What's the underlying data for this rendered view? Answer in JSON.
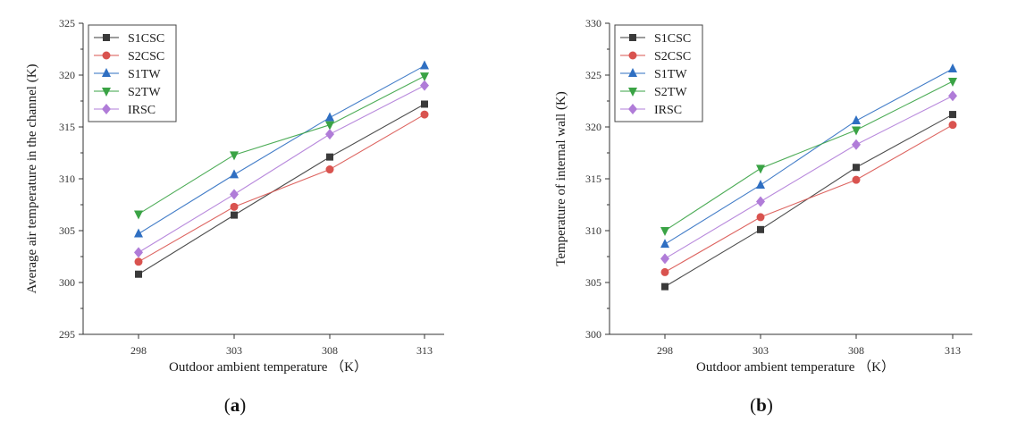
{
  "chart_data": [
    {
      "type": "line",
      "panel": "a",
      "caption_letter": "a",
      "xlabel": "Outdoor ambient temperature （K）",
      "ylabel": "Average air temperature in the channel (K)",
      "categories": [
        "298",
        "303",
        "308",
        "313"
      ],
      "yticks": [
        "295",
        "300",
        "305",
        "310",
        "315",
        "320",
        "325"
      ],
      "ylim": [
        295,
        325
      ],
      "legend_position": "top-left",
      "series": [
        {
          "name": "S1CSC",
          "marker": "square",
          "color": "#3a3a3a",
          "values": [
            300.8,
            306.5,
            312.1,
            317.2
          ]
        },
        {
          "name": "S2CSC",
          "marker": "circle",
          "color": "#d9534f",
          "values": [
            302.0,
            307.3,
            310.9,
            316.2
          ]
        },
        {
          "name": "S1TW",
          "marker": "triangle-up",
          "color": "#2f6fc2",
          "values": [
            304.7,
            310.4,
            315.9,
            320.9
          ]
        },
        {
          "name": "S2TW",
          "marker": "triangle-down",
          "color": "#3aa345",
          "values": [
            306.6,
            312.3,
            315.2,
            319.9
          ]
        },
        {
          "name": "IRSC",
          "marker": "diamond",
          "color": "#b07cd8",
          "values": [
            302.9,
            308.5,
            314.3,
            319.0
          ]
        }
      ]
    },
    {
      "type": "line",
      "panel": "b",
      "caption_letter": "b",
      "xlabel": "Outdoor ambient temperature （K）",
      "ylabel": "Temperature of internal wall (K)",
      "categories": [
        "298",
        "303",
        "308",
        "313"
      ],
      "yticks": [
        "300",
        "305",
        "310",
        "315",
        "320",
        "325",
        "330"
      ],
      "ylim": [
        300,
        330
      ],
      "legend_position": "top-left",
      "series": [
        {
          "name": "S1CSC",
          "marker": "square",
          "color": "#3a3a3a",
          "values": [
            304.6,
            310.1,
            316.1,
            321.2
          ]
        },
        {
          "name": "S2CSC",
          "marker": "circle",
          "color": "#d9534f",
          "values": [
            306.0,
            311.3,
            314.9,
            320.2
          ]
        },
        {
          "name": "S1TW",
          "marker": "triangle-up",
          "color": "#2f6fc2",
          "values": [
            308.7,
            314.4,
            320.6,
            325.6
          ]
        },
        {
          "name": "S2TW",
          "marker": "triangle-down",
          "color": "#3aa345",
          "values": [
            310.0,
            316.0,
            319.7,
            324.4
          ]
        },
        {
          "name": "IRSC",
          "marker": "diamond",
          "color": "#b07cd8",
          "values": [
            307.3,
            312.8,
            318.3,
            323.0
          ]
        }
      ]
    }
  ]
}
